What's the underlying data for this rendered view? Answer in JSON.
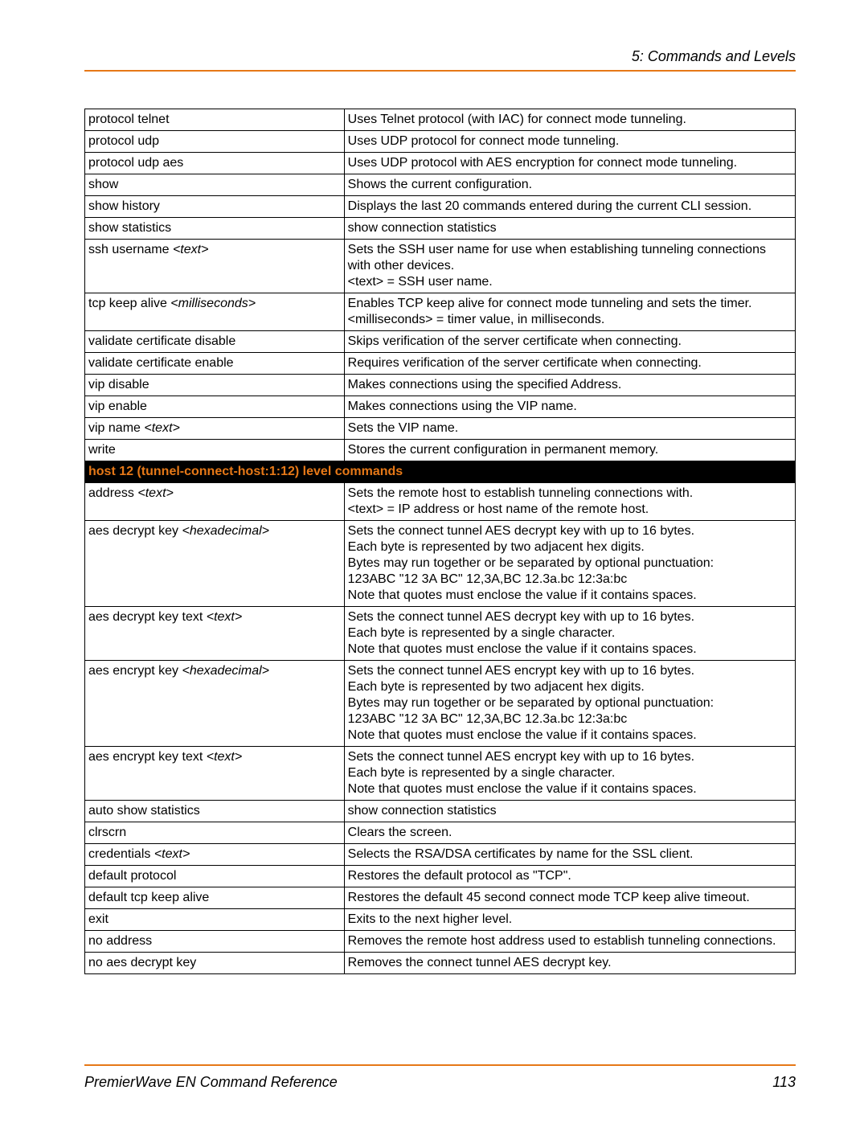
{
  "header": {
    "section_title": "5: Commands and Levels"
  },
  "footer": {
    "doc_title": "PremierWave EN Command Reference",
    "page_number": "113"
  },
  "rows": [
    {
      "type": "data",
      "cmd": "protocol telnet",
      "param": "",
      "desc": "Uses Telnet protocol (with IAC) for connect mode tunneling."
    },
    {
      "type": "data",
      "cmd": "protocol udp",
      "param": "",
      "desc": "Uses UDP protocol for connect mode tunneling."
    },
    {
      "type": "data",
      "cmd": "protocol udp aes",
      "param": "",
      "desc": "Uses UDP protocol with AES encryption for connect mode tunneling."
    },
    {
      "type": "data",
      "cmd": "show",
      "param": "",
      "desc": "Shows the current configuration."
    },
    {
      "type": "data",
      "cmd": "show history",
      "param": "",
      "desc": "Displays the last 20 commands entered during the current CLI session."
    },
    {
      "type": "data",
      "cmd": "show statistics",
      "param": "",
      "desc": "show connection statistics"
    },
    {
      "type": "data",
      "cmd": "ssh username ",
      "param": "<text>",
      "desc": "Sets the SSH user name for use when establishing tunneling connections\nwith other devices.\n<text> = SSH user name."
    },
    {
      "type": "data",
      "cmd": "tcp keep alive ",
      "param": "<milliseconds>",
      "desc": "Enables TCP keep alive for connect mode tunneling and sets the timer.\n<milliseconds> = timer value, in milliseconds."
    },
    {
      "type": "data",
      "cmd": "validate certificate disable",
      "param": "",
      "desc": "Skips verification of the server certificate when connecting."
    },
    {
      "type": "data",
      "cmd": "validate certificate enable",
      "param": "",
      "desc": "Requires verification of the server certificate when connecting."
    },
    {
      "type": "data",
      "cmd": "vip disable",
      "param": "",
      "desc": "Makes connections using the specified Address."
    },
    {
      "type": "data",
      "cmd": "vip enable",
      "param": "",
      "desc": "Makes connections using the VIP name."
    },
    {
      "type": "data",
      "cmd": "vip name ",
      "param": "<text>",
      "desc": "Sets the VIP name."
    },
    {
      "type": "data",
      "cmd": "write",
      "param": "",
      "desc": "Stores the current configuration in permanent memory."
    },
    {
      "type": "section",
      "label": "host 12 (tunnel-connect-host:1:12) level commands"
    },
    {
      "type": "data",
      "cmd": "address ",
      "param": "<text>",
      "desc": "Sets the remote host to establish tunneling connections with.\n<text> = IP address or host name of the remote host."
    },
    {
      "type": "data",
      "cmd": "aes decrypt key ",
      "param": "<hexadecimal>",
      "desc": "Sets the connect tunnel AES decrypt key with up to 16 bytes.\nEach byte is represented by two adjacent hex digits.\nBytes may run together or be separated by optional punctuation:\n123ABC \"12 3A BC\" 12,3A,BC 12.3a.bc 12:3a:bc\nNote that quotes must enclose the value if it contains spaces."
    },
    {
      "type": "data",
      "cmd": "aes decrypt key text ",
      "param": "<text>",
      "desc": "Sets the connect tunnel AES decrypt key with up to 16 bytes.\nEach byte is represented by a single character.\nNote that quotes must enclose the value if it contains spaces."
    },
    {
      "type": "data",
      "cmd": "aes encrypt key ",
      "param": "<hexadecimal>",
      "desc": "Sets the connect tunnel AES encrypt key with up to 16 bytes.\nEach byte is represented by two adjacent hex digits.\nBytes may run together or be separated by optional punctuation:\n123ABC \"12 3A BC\" 12,3A,BC 12.3a.bc 12:3a:bc\nNote that quotes must enclose the value if it contains spaces."
    },
    {
      "type": "data",
      "cmd": "aes encrypt key text ",
      "param": "<text>",
      "desc": "Sets the connect tunnel AES encrypt key with up to 16 bytes.\nEach byte is represented by a single character.\nNote that quotes must enclose the value if it contains spaces."
    },
    {
      "type": "data",
      "cmd": "auto show statistics",
      "param": "",
      "desc": "show connection statistics"
    },
    {
      "type": "data",
      "cmd": "clrscrn",
      "param": "",
      "desc": "Clears the screen."
    },
    {
      "type": "data",
      "cmd": "credentials ",
      "param": "<text>",
      "desc": "Selects the RSA/DSA certificates by name for the SSL client."
    },
    {
      "type": "data",
      "cmd": "default protocol",
      "param": "",
      "desc": "Restores the default protocol as \"TCP\"."
    },
    {
      "type": "data",
      "cmd": "default tcp keep alive",
      "param": "",
      "desc": "Restores the default 45 second connect mode TCP keep alive timeout."
    },
    {
      "type": "data",
      "cmd": "exit",
      "param": "",
      "desc": "Exits to the next higher level."
    },
    {
      "type": "data",
      "cmd": "no address",
      "param": "",
      "desc": "Removes the remote host address used to establish tunneling connections."
    },
    {
      "type": "data",
      "cmd": "no aes decrypt key",
      "param": "",
      "desc": "Removes the connect tunnel AES decrypt key."
    }
  ]
}
